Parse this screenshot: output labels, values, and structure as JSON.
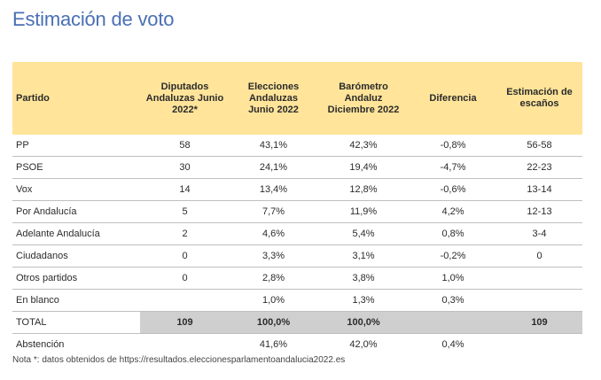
{
  "title": "Estimación de voto",
  "headers": [
    "Partido",
    "Diputados Andaluzas Junio 2022*",
    "Elecciones Andaluzas Junio 2022",
    "Barómetro Andaluz Diciembre 2022",
    "Diferencia",
    "Estimación de escaños"
  ],
  "rows": [
    {
      "partido": "PP",
      "diputados": "58",
      "elecciones": "43,1%",
      "barometro": "42,3%",
      "diferencia": "-0,8%",
      "escanos": "56-58"
    },
    {
      "partido": "PSOE",
      "diputados": "30",
      "elecciones": "24,1%",
      "barometro": "19,4%",
      "diferencia": "-4,7%",
      "escanos": "22-23"
    },
    {
      "partido": "Vox",
      "diputados": "14",
      "elecciones": "13,4%",
      "barometro": "12,8%",
      "diferencia": "-0,6%",
      "escanos": "13-14"
    },
    {
      "partido": "Por Andalucía",
      "diputados": "5",
      "elecciones": "7,7%",
      "barometro": "11,9%",
      "diferencia": "4,2%",
      "escanos": "12-13"
    },
    {
      "partido": "Adelante Andalucía",
      "diputados": "2",
      "elecciones": "4,6%",
      "barometro": "5,4%",
      "diferencia": "0,8%",
      "escanos": "3-4"
    },
    {
      "partido": "Ciudadanos",
      "diputados": "0",
      "elecciones": "3,3%",
      "barometro": "3,1%",
      "diferencia": "-0,2%",
      "escanos": "0"
    },
    {
      "partido": "Otros partidos",
      "diputados": "0",
      "elecciones": "2,8%",
      "barometro": "3,8%",
      "diferencia": "1,0%",
      "escanos": ""
    },
    {
      "partido": "En blanco",
      "diputados": "",
      "elecciones": "1,0%",
      "barometro": "1,3%",
      "diferencia": "0,3%",
      "escanos": ""
    }
  ],
  "total": {
    "partido": "TOTAL",
    "diputados": "109",
    "elecciones": "100,0%",
    "barometro": "100,0%",
    "diferencia": "",
    "escanos": "109"
  },
  "abstencion": {
    "partido": "Abstención",
    "diputados": "",
    "elecciones": "41,6%",
    "barometro": "42,0%",
    "diferencia": "0,4%",
    "escanos": ""
  },
  "note": "Nota *: datos obtenidos de https://resultados.eleccionesparlamentoandalucia2022.es",
  "colors": {
    "title": "#4a6fb5",
    "header_bg": "#ffe49a",
    "total_bg": "#cfcfcf"
  }
}
